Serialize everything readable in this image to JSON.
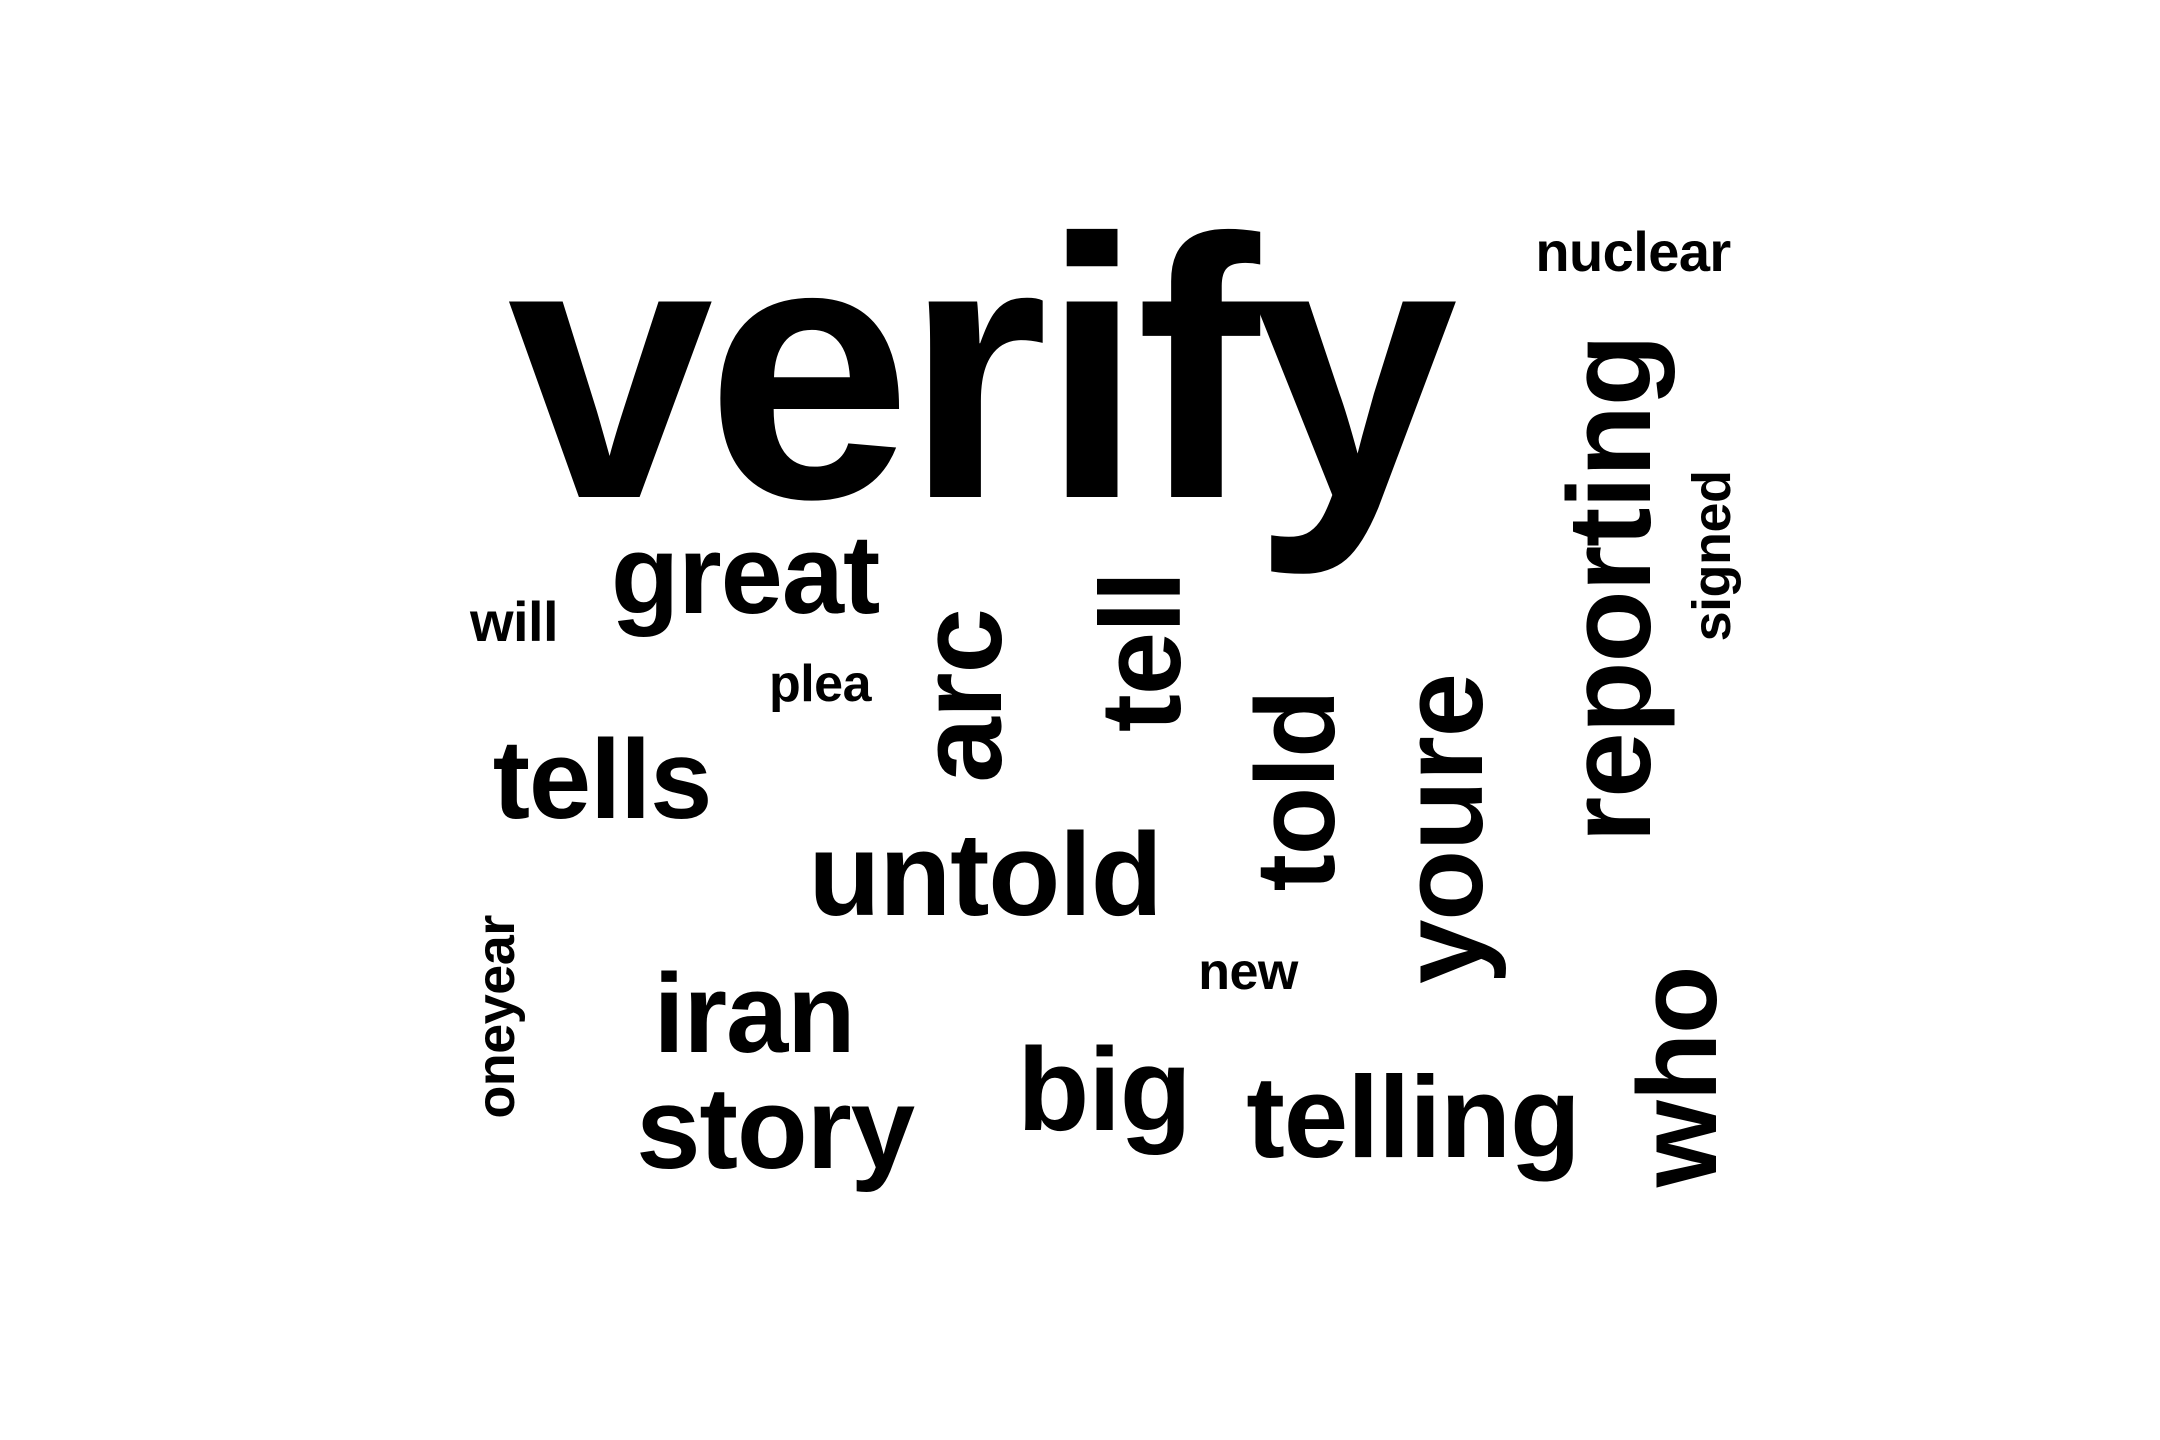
{
  "word_cloud": {
    "words": [
      {
        "text": "verify",
        "rotation": "horizontal"
      },
      {
        "text": "nuclear",
        "rotation": "horizontal"
      },
      {
        "text": "reporting",
        "rotation": "vertical"
      },
      {
        "text": "signed",
        "rotation": "vertical"
      },
      {
        "text": "great",
        "rotation": "horizontal"
      },
      {
        "text": "will",
        "rotation": "horizontal"
      },
      {
        "text": "plea",
        "rotation": "horizontal"
      },
      {
        "text": "arc",
        "rotation": "vertical"
      },
      {
        "text": "tell",
        "rotation": "vertical"
      },
      {
        "text": "told",
        "rotation": "vertical"
      },
      {
        "text": "youre",
        "rotation": "vertical"
      },
      {
        "text": "tells",
        "rotation": "horizontal"
      },
      {
        "text": "untold",
        "rotation": "horizontal"
      },
      {
        "text": "oneyear",
        "rotation": "vertical"
      },
      {
        "text": "new",
        "rotation": "horizontal"
      },
      {
        "text": "iran",
        "rotation": "horizontal"
      },
      {
        "text": "story",
        "rotation": "horizontal"
      },
      {
        "text": "big",
        "rotation": "horizontal"
      },
      {
        "text": "telling",
        "rotation": "horizontal"
      },
      {
        "text": "who",
        "rotation": "vertical"
      }
    ],
    "colors": {
      "text": "#000000",
      "background": "#ffffff"
    }
  }
}
